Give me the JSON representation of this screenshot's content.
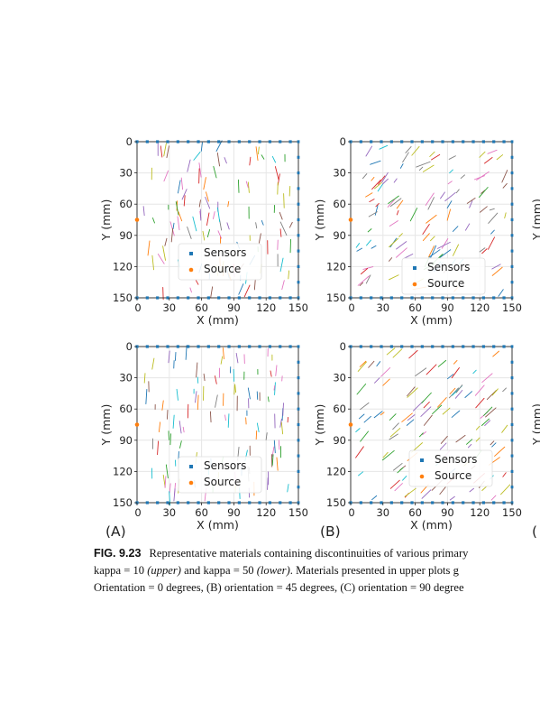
{
  "figure_label": "FIG. 9.23",
  "caption_lines": [
    {
      "parts": [
        {
          "text": "Representative materials containing discontinuities of various primary",
          "style": "normal"
        }
      ]
    },
    {
      "parts": [
        {
          "text": "kappa = 10 ",
          "style": "normal"
        },
        {
          "text": "(upper)",
          "style": "italic"
        },
        {
          "text": " and kappa = 50 ",
          "style": "normal"
        },
        {
          "text": "(lower)",
          "style": "italic"
        },
        {
          "text": ". Materials presented in upper plots g",
          "style": "normal"
        }
      ]
    },
    {
      "parts": [
        {
          "text": "Orientation = 0 degrees, (B) orientation = 45 degrees, (C) orientation = 90 degree",
          "style": "normal"
        }
      ]
    }
  ],
  "panel_labels": [
    "(A)",
    "(B)",
    "("
  ],
  "colors": {
    "sensor": "#1f77b4",
    "source": "#ff7f0e",
    "grid": "#e6e6e6",
    "frame": "#222222",
    "cracks": [
      "#1f77b4",
      "#ff7f0e",
      "#2ca02c",
      "#d62728",
      "#9467bd",
      "#8c564b",
      "#e377c2",
      "#7f7f7f",
      "#bcbd22",
      "#17becf"
    ]
  },
  "chart_data": [
    {
      "id": "A-upper",
      "type": "scatter",
      "xlabel": "X (mm)",
      "ylabel": "Y (mm)",
      "xlim": [
        0,
        150
      ],
      "ylim": [
        150,
        0
      ],
      "xticks": [
        "0",
        "30",
        "60",
        "90",
        "120",
        "150"
      ],
      "yticks": [
        "0",
        "30",
        "60",
        "90",
        "120",
        "150"
      ],
      "legend": [
        {
          "name": "Sensors"
        },
        {
          "name": "Source"
        }
      ],
      "legend_loc": "lower-center",
      "source": {
        "x": 0,
        "y": 75
      },
      "orientation_deg": 0,
      "kappa": 10
    },
    {
      "id": "B-upper",
      "type": "scatter",
      "xlabel": "X (mm)",
      "ylabel": "Y (mm)",
      "xlim": [
        0,
        150
      ],
      "ylim": [
        150,
        0
      ],
      "xticks": [
        "0",
        "30",
        "60",
        "90",
        "120",
        "150"
      ],
      "yticks": [
        "0",
        "30",
        "60",
        "90",
        "120",
        "150"
      ],
      "legend": [
        {
          "name": "Sensors"
        },
        {
          "name": "Source"
        }
      ],
      "legend_loc": "lower-right",
      "source": {
        "x": 0,
        "y": 75
      },
      "orientation_deg": 45,
      "kappa": 10
    },
    {
      "id": "A-lower",
      "type": "scatter",
      "xlabel": "X (mm)",
      "ylabel": "Y (mm)",
      "xlim": [
        0,
        150
      ],
      "ylim": [
        150,
        0
      ],
      "xticks": [
        "0",
        "30",
        "60",
        "90",
        "120",
        "150"
      ],
      "yticks": [
        "0",
        "30",
        "60",
        "90",
        "120",
        "150"
      ],
      "legend": [
        {
          "name": "Sensors"
        },
        {
          "name": "Source"
        }
      ],
      "legend_loc": "lower-center",
      "source": {
        "x": 0,
        "y": 75
      },
      "orientation_deg": 0,
      "kappa": 50
    },
    {
      "id": "B-lower",
      "type": "scatter",
      "xlabel": "X (mm)",
      "ylabel": "Y (mm)",
      "xlim": [
        0,
        150
      ],
      "ylim": [
        150,
        0
      ],
      "xticks": [
        "0",
        "30",
        "60",
        "90",
        "120",
        "150"
      ],
      "yticks": [
        "0",
        "30",
        "60",
        "90",
        "120",
        "150"
      ],
      "legend": [
        {
          "name": "Sensors"
        },
        {
          "name": "Source"
        }
      ],
      "legend_loc": "lower-right",
      "source": {
        "x": 0,
        "y": 75
      },
      "orientation_deg": 45,
      "kappa": 50
    },
    {
      "id": "C-upper",
      "type": "scatter",
      "ylabel": "Y (mm)"
    },
    {
      "id": "C-lower",
      "type": "scatter",
      "ylabel": "Y (mm)"
    }
  ]
}
